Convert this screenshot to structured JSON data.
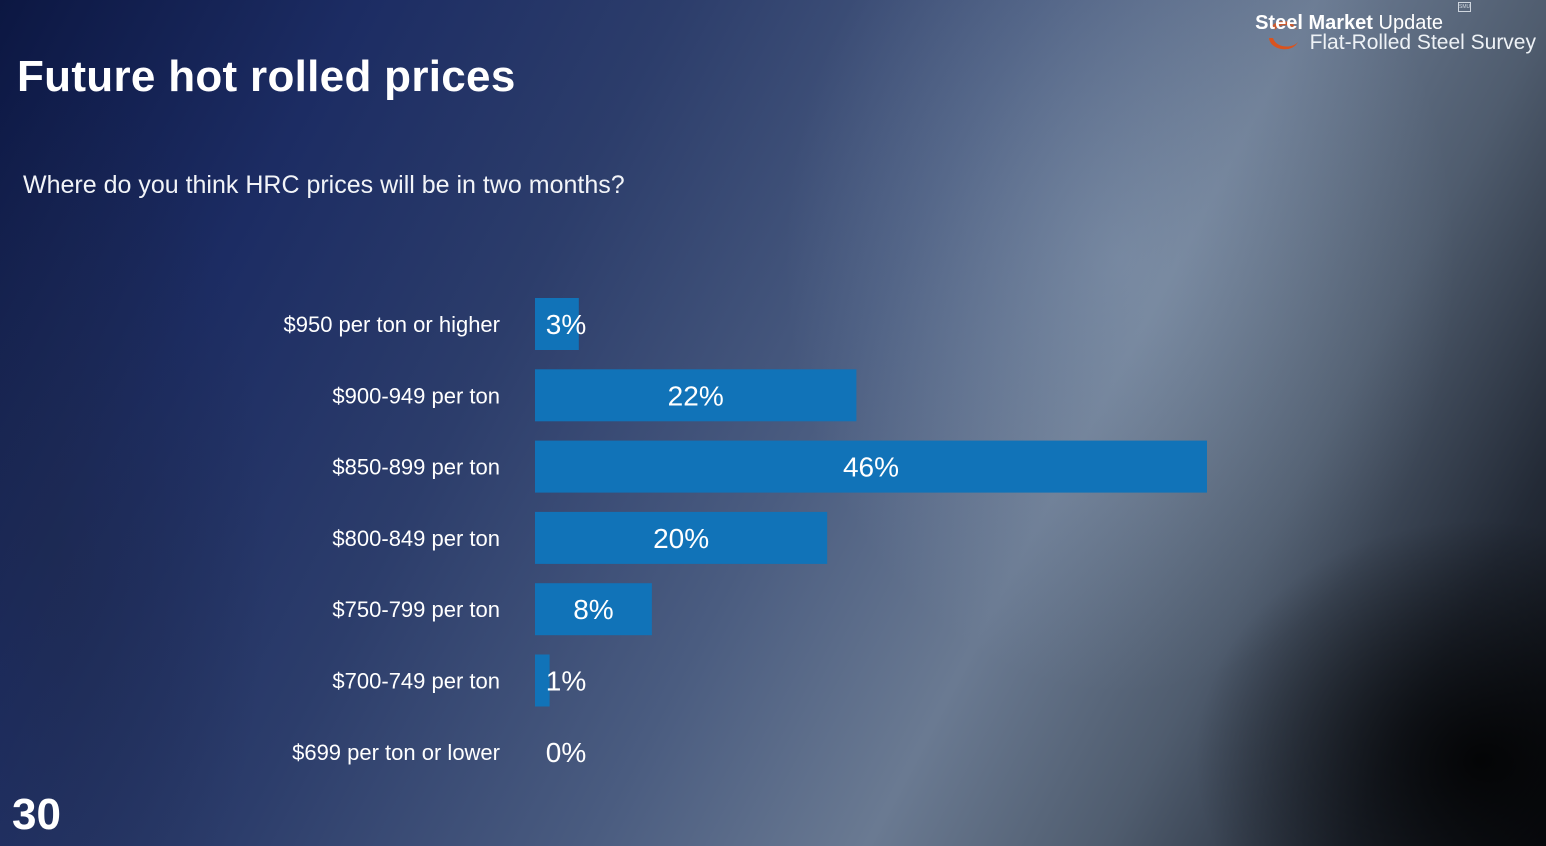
{
  "slide": {
    "title": "Future hot rolled prices",
    "question": "Where do you think HRC prices will be in two months?",
    "page_number": "30"
  },
  "logo": {
    "brand_bold": "Steel Market",
    "brand_light": "Update",
    "subtitle": "Flat-Rolled Steel Survey",
    "badge": "SMU"
  },
  "colors": {
    "bar": "#1173b8",
    "text": "#ffffff",
    "logo_swoosh": "#d9531e"
  },
  "chart_data": {
    "type": "bar",
    "orientation": "horizontal",
    "title": "",
    "xlabel": "",
    "ylabel": "",
    "categories": [
      "$950 per ton or higher",
      "$900-949 per ton",
      "$850-899 per ton",
      "$800-849 per ton",
      "$750-799 per ton",
      "$700-749 per ton",
      "$699 per ton or lower"
    ],
    "values": [
      3,
      22,
      46,
      20,
      8,
      1,
      0
    ],
    "labels": [
      "3%",
      "22%",
      "46%",
      "20%",
      "8%",
      "1%",
      "0%"
    ],
    "xlim": [
      0,
      46
    ],
    "grid": false,
    "legend": "none"
  }
}
